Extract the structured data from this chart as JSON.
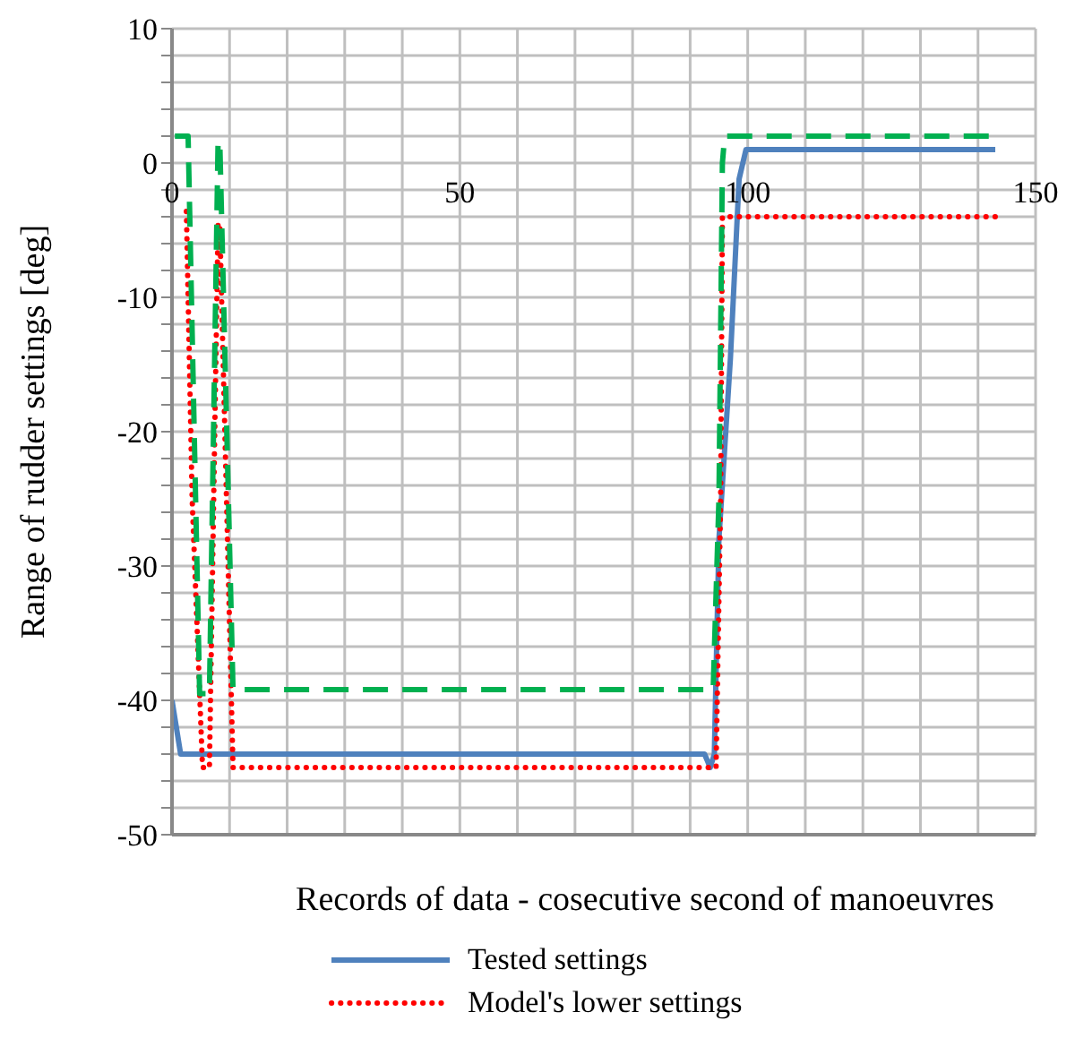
{
  "chart_data": {
    "type": "line",
    "xlabel": "Records of data - cosecutive second of manoeuvres",
    "ylabel": "Range of rudder settings [deg]",
    "xlim": [
      0,
      150
    ],
    "ylim": [
      -50,
      10
    ],
    "xticks": [
      0,
      {
        "value": 10,
        "label": null
      },
      {
        "value": 20,
        "label": null
      },
      {
        "value": 30,
        "label": null
      },
      {
        "value": 40,
        "label": null
      },
      50,
      {
        "value": 60,
        "label": null
      },
      {
        "value": 70,
        "label": null
      },
      {
        "value": 80,
        "label": null
      },
      {
        "value": 90,
        "label": null
      },
      100,
      {
        "value": 110,
        "label": null
      },
      {
        "value": 120,
        "label": null
      },
      {
        "value": 130,
        "label": null
      },
      {
        "value": 140,
        "label": null
      },
      150
    ],
    "yticks": [
      -50,
      {
        "value": -48,
        "label": null
      },
      {
        "value": -46,
        "label": null
      },
      {
        "value": -44,
        "label": null
      },
      {
        "value": -42,
        "label": null
      },
      -40,
      {
        "value": -38,
        "label": null
      },
      {
        "value": -36,
        "label": null
      },
      {
        "value": -34,
        "label": null
      },
      {
        "value": -32,
        "label": null
      },
      -30,
      {
        "value": -28,
        "label": null
      },
      {
        "value": -26,
        "label": null
      },
      {
        "value": -24,
        "label": null
      },
      {
        "value": -22,
        "label": null
      },
      -20,
      {
        "value": -18,
        "label": null
      },
      {
        "value": -16,
        "label": null
      },
      {
        "value": -14,
        "label": null
      },
      {
        "value": -12,
        "label": null
      },
      -10,
      {
        "value": -8,
        "label": null
      },
      {
        "value": -6,
        "label": null
      },
      {
        "value": -4,
        "label": null
      },
      {
        "value": -2,
        "label": null
      },
      0,
      {
        "value": 2,
        "label": null
      },
      {
        "value": 4,
        "label": null
      },
      {
        "value": 6,
        "label": null
      },
      {
        "value": 8,
        "label": null
      },
      10
    ],
    "grid": true,
    "legend": "bottom",
    "marker": "none",
    "series": [
      {
        "name": "Tested settings",
        "color": "#4f81bd",
        "line_style": "solid",
        "x": [
          0,
          1.5,
          92.5,
          93.5,
          94.2,
          95,
          97,
          98.5,
          99.7,
          143
        ],
        "values": [
          -40,
          -44,
          -44,
          -45,
          -44,
          -28,
          -14.5,
          -1.2,
          1,
          1
        ]
      },
      {
        "name": "Model's lower settings",
        "color": "#ff0000",
        "line_style": "dotted",
        "x": [
          2.5,
          3.5,
          5.3,
          6.5,
          8,
          8.3,
          10.6,
          94.5,
          95.3,
          95.6,
          143
        ],
        "values": [
          -3.6,
          -25,
          -45,
          -45,
          -4.5,
          -4.5,
          -45,
          -45,
          -25,
          -4,
          -4
        ]
      },
      {
        "color": "#00b050",
        "line_style": "dashed",
        "x": [
          0.5,
          2.8,
          4.8,
          6.5,
          8,
          8.3,
          10.6,
          92.5,
          94,
          95,
          95.6,
          96,
          143
        ],
        "values": [
          2,
          2,
          -39.5,
          -39.5,
          1.6,
          1.6,
          -39.2,
          -39.2,
          -39.2,
          -25,
          0,
          2,
          2
        ]
      }
    ]
  }
}
